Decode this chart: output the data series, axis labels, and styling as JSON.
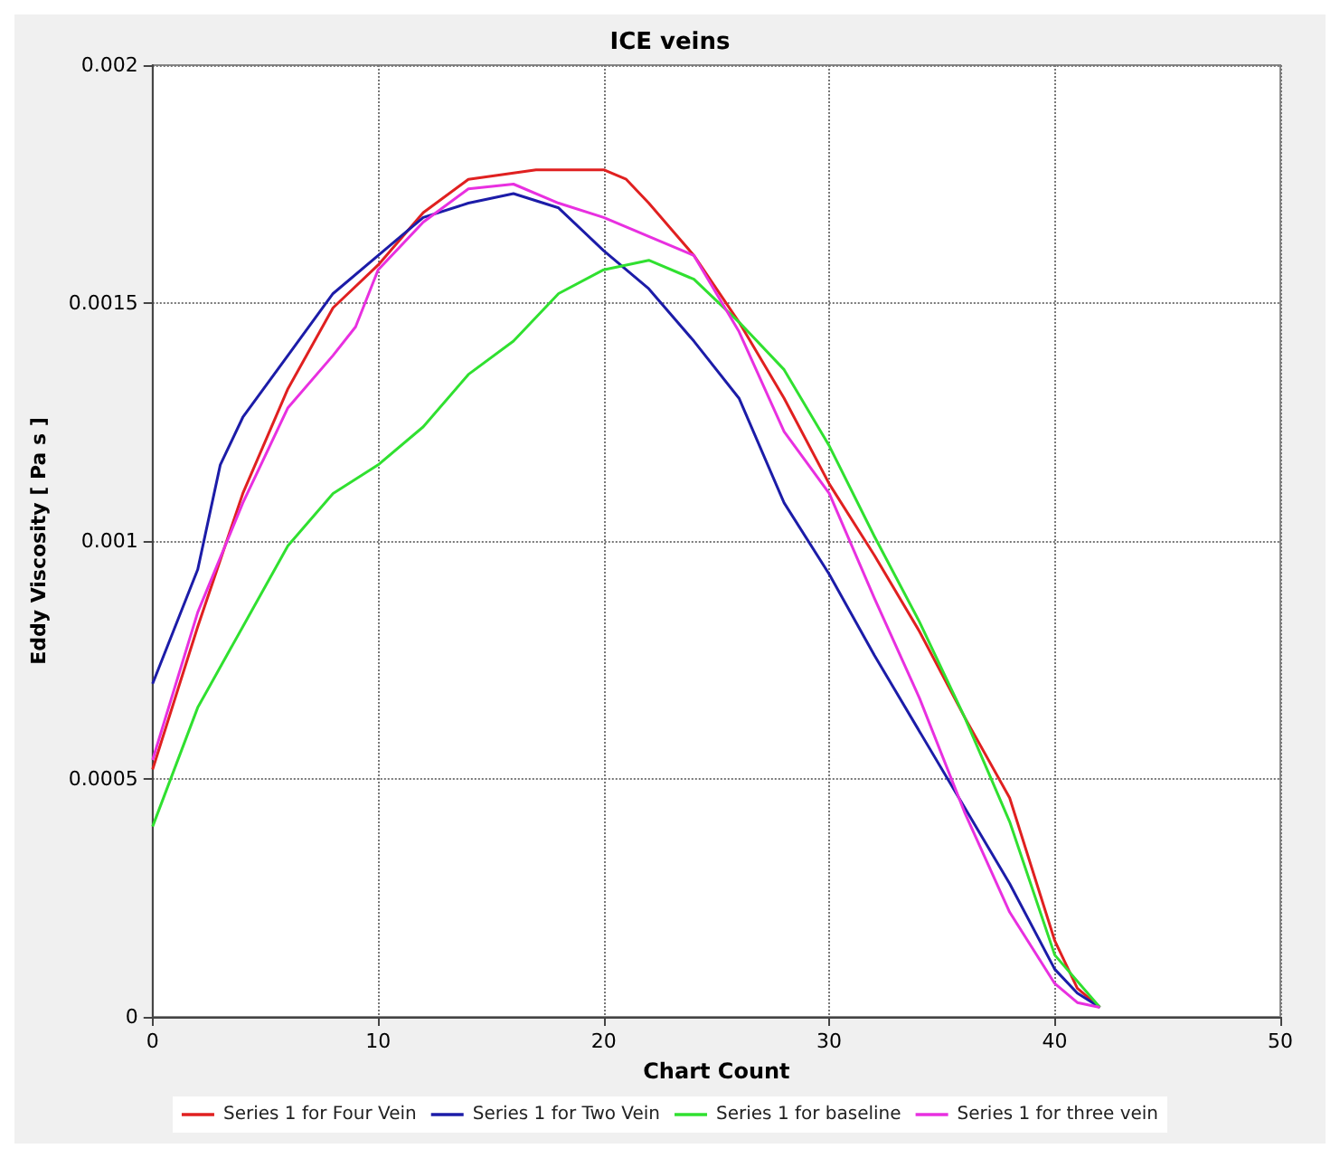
{
  "chart_data": {
    "type": "line",
    "title": "ICE veins",
    "xlabel": "Chart Count",
    "ylabel": "Eddy Viscosity [ Pa s ]",
    "xlim": [
      0,
      50
    ],
    "xticks": [
      0,
      10,
      20,
      30,
      40,
      50
    ],
    "ylim": [
      0,
      0.002
    ],
    "yticks": [
      0,
      0.0005,
      0.001,
      0.0015,
      0.002
    ],
    "grid": true,
    "legend": "bottom",
    "marker": "none",
    "line_style": "solid",
    "x": [
      0,
      2,
      4,
      6,
      8,
      10,
      12,
      14,
      17,
      20,
      21,
      22,
      24,
      26,
      28,
      30,
      32,
      34,
      36,
      38,
      40,
      41,
      42
    ],
    "series": [
      {
        "name": "Series 1 for Four Vein",
        "color": "#e02020",
        "values": [
          0.00052,
          0.00082,
          0.0011,
          0.00132,
          0.00149,
          0.00158,
          0.00169,
          0.00176,
          0.00178,
          0.00178,
          0.00176,
          0.00171,
          0.0016,
          0.00146,
          0.0013,
          0.00112,
          0.00097,
          0.00081,
          0.00063,
          0.00046,
          0.00016,
          6e-05,
          2e-05
        ]
      },
      {
        "name": "Series 1 for Two Vein",
        "color": "#1c1ca8",
        "x": [
          0,
          2,
          3,
          4,
          6,
          8,
          10,
          12,
          14,
          16,
          18,
          20,
          22,
          24,
          26,
          28,
          30,
          32,
          34,
          36,
          38,
          40,
          41,
          42
        ],
        "values": [
          0.0007,
          0.00094,
          0.00116,
          0.00126,
          0.00139,
          0.00152,
          0.0016,
          0.00168,
          0.00171,
          0.00173,
          0.0017,
          0.00161,
          0.00153,
          0.00142,
          0.0013,
          0.00108,
          0.00093,
          0.00076,
          0.0006,
          0.00044,
          0.00028,
          0.0001,
          5e-05,
          2e-05
        ]
      },
      {
        "name": "Series 1 for baseline",
        "color": "#30e030",
        "x": [
          0,
          2,
          4,
          6,
          8,
          10,
          12,
          14,
          16,
          18,
          20,
          22,
          24,
          26,
          28,
          30,
          32,
          34,
          36,
          38,
          40,
          42
        ],
        "values": [
          0.0004,
          0.00065,
          0.00082,
          0.00099,
          0.0011,
          0.00116,
          0.00124,
          0.00135,
          0.00142,
          0.00152,
          0.00157,
          0.00159,
          0.00155,
          0.00146,
          0.00136,
          0.0012,
          0.00101,
          0.00083,
          0.00063,
          0.00041,
          0.00013,
          2e-05
        ]
      },
      {
        "name": "Series 1 for three vein",
        "color": "#e830e0",
        "x": [
          0,
          2,
          4,
          6,
          8,
          9,
          10,
          12,
          14,
          16,
          18,
          20,
          22,
          24,
          26,
          28,
          30,
          32,
          34,
          36,
          38,
          40,
          41,
          42
        ],
        "values": [
          0.00054,
          0.00085,
          0.00108,
          0.00128,
          0.00139,
          0.00145,
          0.00157,
          0.00167,
          0.00174,
          0.00175,
          0.00171,
          0.00168,
          0.00164,
          0.0016,
          0.00144,
          0.00123,
          0.0011,
          0.00088,
          0.00067,
          0.00043,
          0.00022,
          7e-05,
          3e-05,
          2e-05
        ]
      }
    ]
  }
}
